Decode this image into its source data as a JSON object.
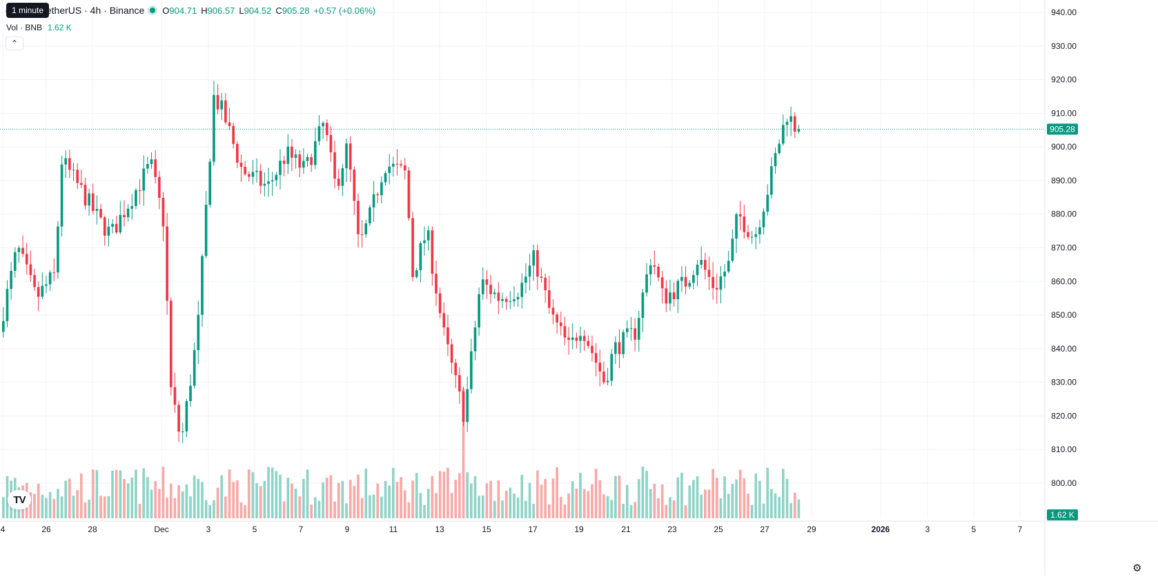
{
  "tooltip": "1 minute",
  "header": {
    "symbol_title": "e Coin / TetherUS · 4h · Binance",
    "ohlc": [
      {
        "k": "O",
        "v": "904.71"
      },
      {
        "k": "H",
        "v": "906.57"
      },
      {
        "k": "L",
        "v": "904.52"
      },
      {
        "k": "C",
        "v": "905.28"
      }
    ],
    "change": "+0.57 (+0.06%)"
  },
  "volume_legend": {
    "label": "Vol · BNB",
    "value": "1.62 K"
  },
  "collapse_icon": "chevron-up-icon",
  "logo_text": "TV",
  "colors": {
    "up": "#089981",
    "down": "#f23645",
    "up_vol": "#8fd3c7",
    "down_vol": "#f7a9a7",
    "grid": "#f0f3fa"
  },
  "chart_data": {
    "type": "candlestick",
    "ylim": [
      795,
      945
    ],
    "y_ticks": [
      "940.00",
      "930.00",
      "920.00",
      "910.00",
      "900.00",
      "890.00",
      "880.00",
      "870.00",
      "860.00",
      "850.00",
      "840.00",
      "830.00",
      "820.00",
      "810.00",
      "800.00"
    ],
    "x_ticks": [
      "4",
      "26",
      "28",
      "Dec",
      "3",
      "5",
      "7",
      "9",
      "11",
      "13",
      "15",
      "17",
      "19",
      "21",
      "23",
      "25",
      "27",
      "29",
      "2026",
      "3",
      "5",
      "7"
    ],
    "last_price": "905.28",
    "last_volume": "1.62 K",
    "anchors": [
      {
        "d": 0,
        "p": 845
      },
      {
        "d": 0.8,
        "p": 870
      },
      {
        "d": 1.6,
        "p": 855
      },
      {
        "d": 2.4,
        "p": 862
      },
      {
        "d": 2.7,
        "p": 896
      },
      {
        "d": 3.8,
        "p": 884
      },
      {
        "d": 4.3,
        "p": 878
      },
      {
        "d": 4.8,
        "p": 874
      },
      {
        "d": 6.5,
        "p": 895
      },
      {
        "d": 7.1,
        "p": 876
      },
      {
        "d": 7.3,
        "p": 830
      },
      {
        "d": 7.8,
        "p": 812
      },
      {
        "d": 8.5,
        "p": 845
      },
      {
        "d": 9.2,
        "p": 915
      },
      {
        "d": 9.6,
        "p": 910
      },
      {
        "d": 10.4,
        "p": 893
      },
      {
        "d": 11.5,
        "p": 888
      },
      {
        "d": 12.3,
        "p": 898
      },
      {
        "d": 13.1,
        "p": 893
      },
      {
        "d": 13.9,
        "p": 907
      },
      {
        "d": 14.4,
        "p": 888
      },
      {
        "d": 14.9,
        "p": 900
      },
      {
        "d": 15.4,
        "p": 870
      },
      {
        "d": 15.9,
        "p": 880
      },
      {
        "d": 16.5,
        "p": 895
      },
      {
        "d": 17.4,
        "p": 892
      },
      {
        "d": 17.7,
        "p": 862
      },
      {
        "d": 18.3,
        "p": 875
      },
      {
        "d": 19.0,
        "p": 845
      },
      {
        "d": 19.6,
        "p": 828
      },
      {
        "d": 19.9,
        "p": 820
      },
      {
        "d": 20.6,
        "p": 860
      },
      {
        "d": 21.4,
        "p": 855
      },
      {
        "d": 22.3,
        "p": 858
      },
      {
        "d": 22.9,
        "p": 867
      },
      {
        "d": 23.6,
        "p": 850
      },
      {
        "d": 24.4,
        "p": 840
      },
      {
        "d": 24.9,
        "p": 847
      },
      {
        "d": 25.9,
        "p": 830
      },
      {
        "d": 26.3,
        "p": 840
      },
      {
        "d": 27.2,
        "p": 845
      },
      {
        "d": 27.9,
        "p": 868
      },
      {
        "d": 28.4,
        "p": 855
      },
      {
        "d": 29.4,
        "p": 860
      },
      {
        "d": 29.9,
        "p": 867
      },
      {
        "d": 30.6,
        "p": 858
      },
      {
        "d": 31.2,
        "p": 865
      },
      {
        "d": 31.6,
        "p": 880
      },
      {
        "d": 32.3,
        "p": 873
      },
      {
        "d": 32.9,
        "p": 888
      },
      {
        "d": 33.3,
        "p": 900
      },
      {
        "d": 33.7,
        "p": 910
      },
      {
        "d": 34.1,
        "p": 905.28
      }
    ],
    "volume_spike": {
      "day": 19.85,
      "volume": 20
    }
  }
}
